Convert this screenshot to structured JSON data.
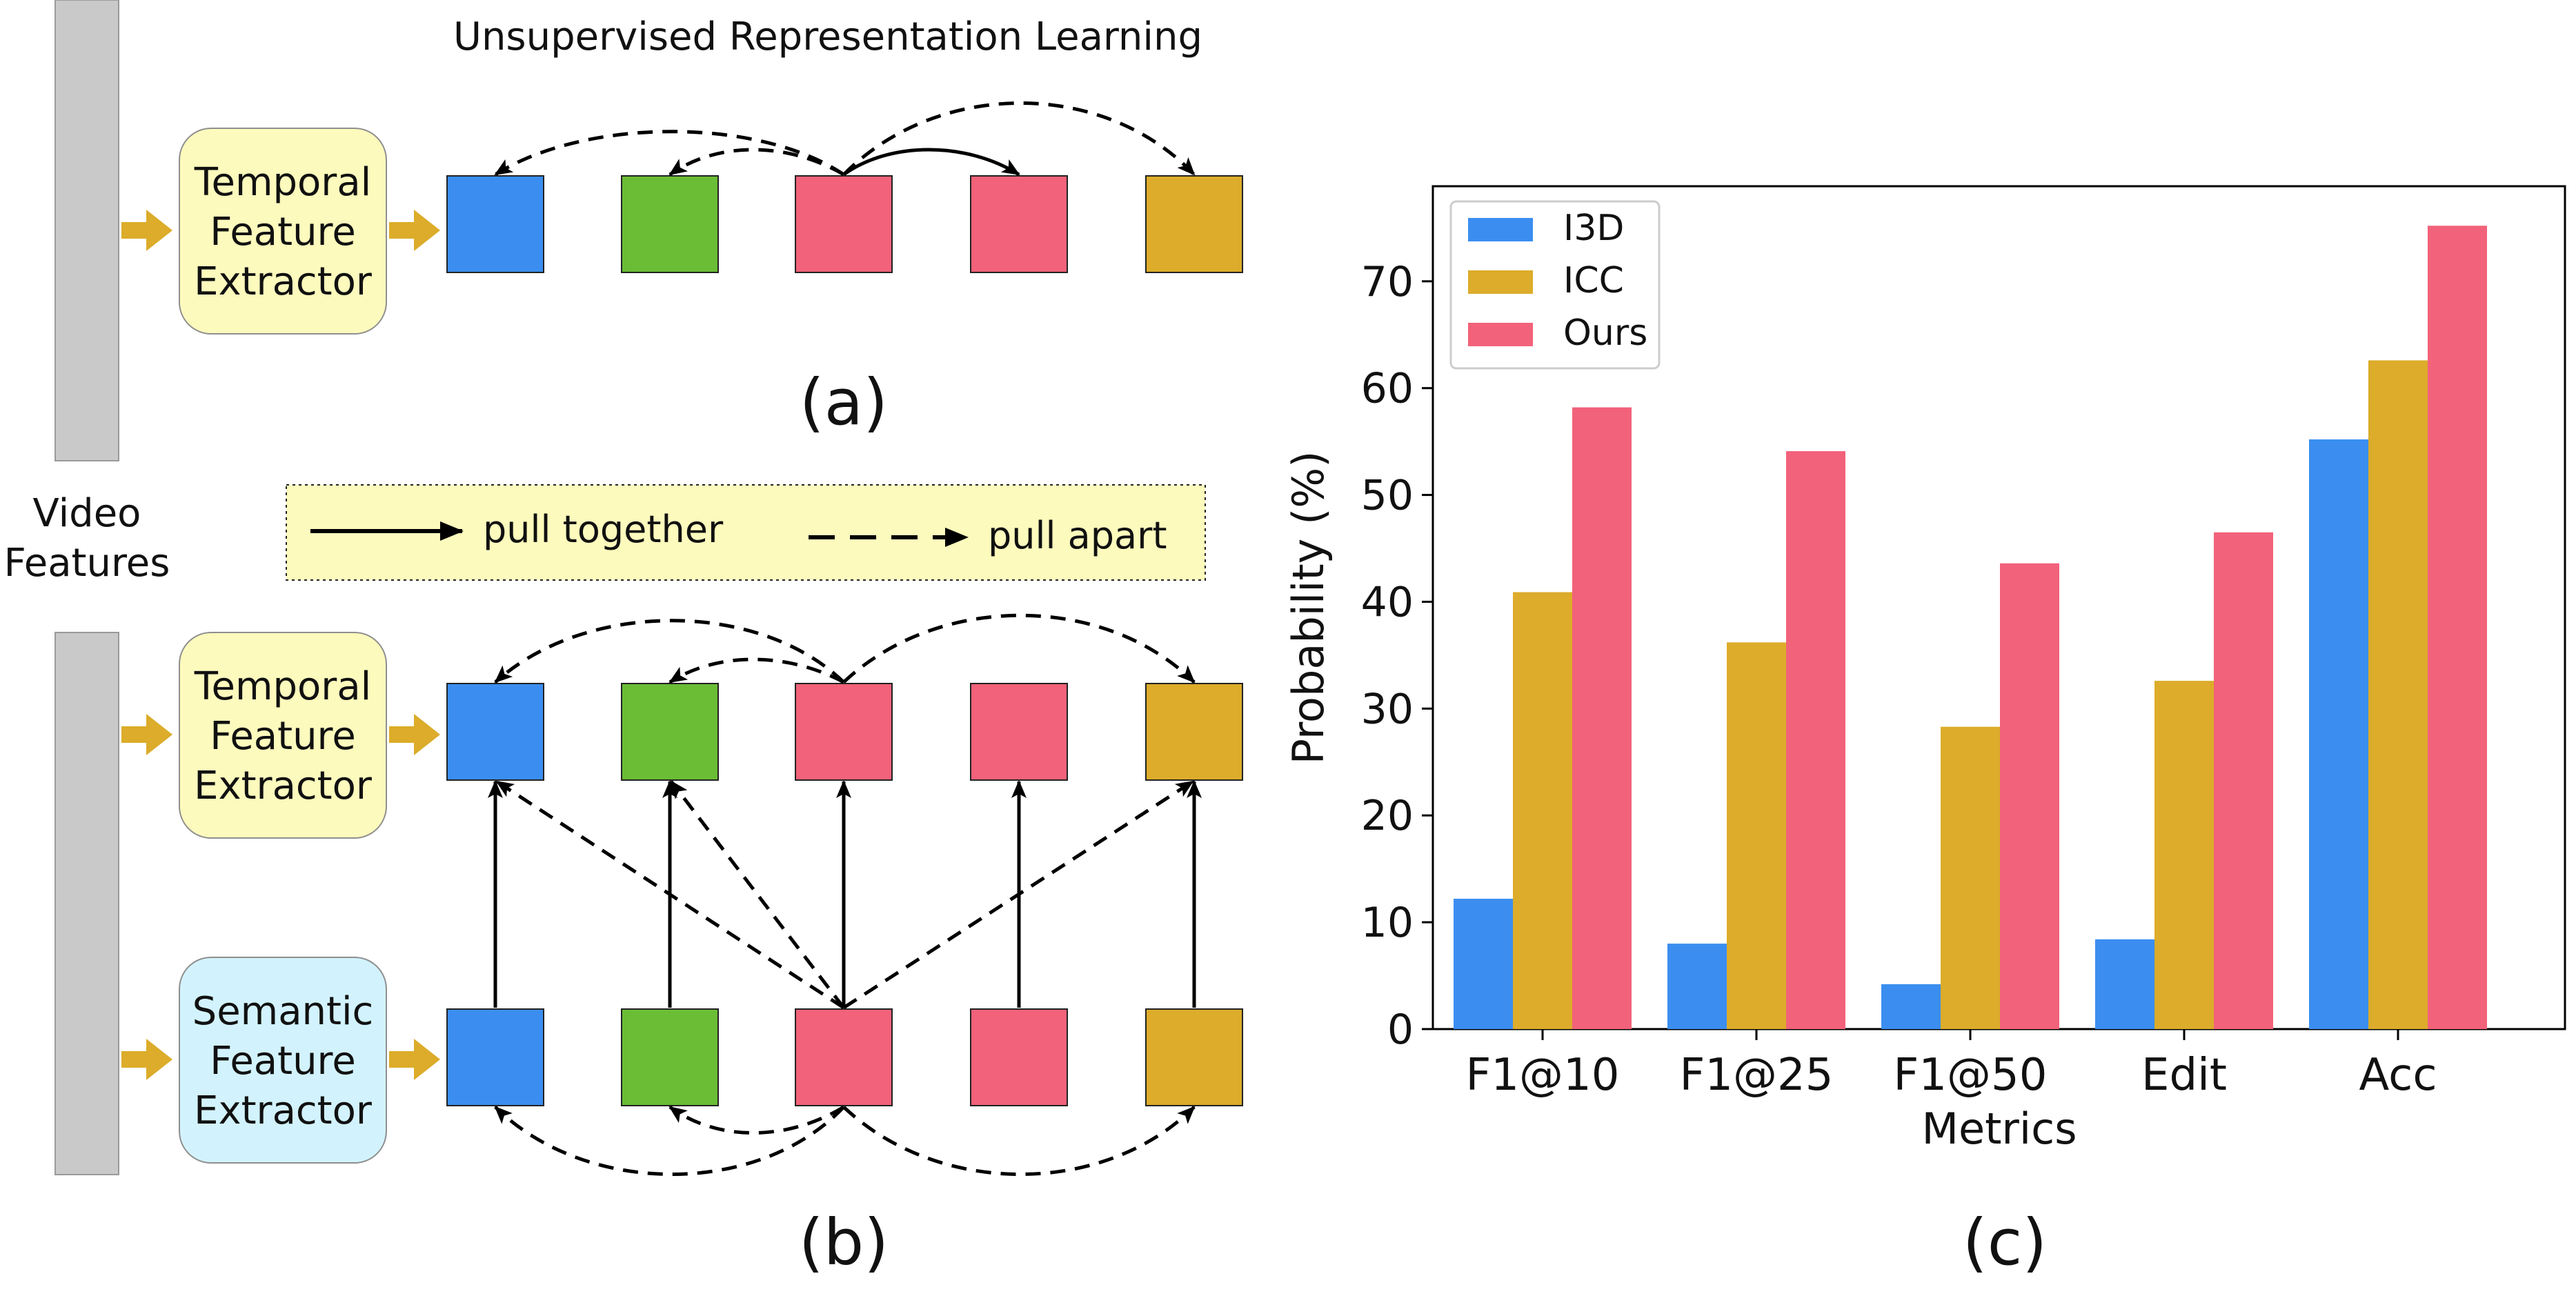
{
  "diagram": {
    "title": "Unsupervised Representation Learning",
    "panel_a_label": "(a)",
    "panel_b_label": "(b)",
    "panel_c_label": "(c)",
    "video_features_line1": "Video",
    "video_features_line2": "Features",
    "temporal_extractor": [
      "Temporal",
      "Feature",
      "Extractor"
    ],
    "semantic_extractor": [
      "Semantic",
      "Feature",
      "Extractor"
    ],
    "legend_pull_together": "pull together",
    "legend_pull_apart": "pull apart"
  },
  "colors": {
    "blue": "#3b8ef0",
    "green": "#6abd35",
    "pink": "#f2627a",
    "gold": "#dcac2a",
    "arrow_gold": "#dcac2a",
    "extractor_temporal": "#fdfabd",
    "extractor_semantic": "#d2f3fd",
    "legend_bg": "#fdfabd",
    "video_bar": "#c9c9c9"
  },
  "chart_data": {
    "type": "bar",
    "categories": [
      "F1@10",
      "F1@25",
      "F1@50",
      "Edit",
      "Acc"
    ],
    "series": [
      {
        "name": "I3D",
        "color": "#3b8ef0",
        "values": [
          12.2,
          8.0,
          4.2,
          8.4,
          55.2
        ]
      },
      {
        "name": "ICC",
        "color": "#dcac2a",
        "values": [
          40.9,
          36.2,
          28.3,
          32.6,
          62.6
        ]
      },
      {
        "name": "Ours",
        "color": "#f2627a",
        "values": [
          58.2,
          54.1,
          43.6,
          46.5,
          75.2
        ]
      }
    ],
    "xlabel": "Metrics",
    "ylabel": "Probability (%)",
    "ylim": [
      0,
      78.9
    ],
    "yticks": [
      0,
      10,
      20,
      30,
      40,
      50,
      60,
      70
    ],
    "legend_position": "top-left"
  }
}
